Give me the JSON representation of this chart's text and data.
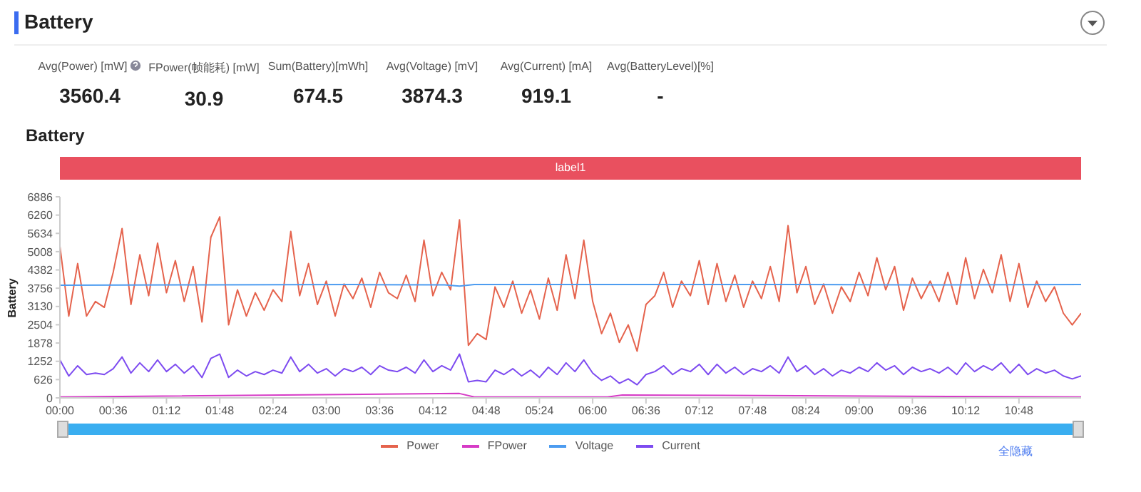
{
  "chart_data": {
    "type": "line",
    "title": "Battery",
    "subtitle": "Battery",
    "ylabel": "Battery",
    "annotations": [
      "Avg(Power) [mW]",
      "3560.4",
      "FPower(帧能耗) [mW]",
      "30.9",
      "Sum(Battery)[mWh]",
      "674.5",
      "Avg(Voltage) [mV]",
      "3874.3",
      "Avg(Current) [mA]",
      "919.1",
      "Avg(BatteryLevel)[%]",
      "-",
      "全隐藏"
    ],
    "bands": [
      {
        "axis": "x",
        "from": 0,
        "to": 690,
        "label": "label1"
      }
    ],
    "xlim": [
      0,
      690
    ],
    "xticks": [
      {
        "value": 0,
        "label": "00:00"
      },
      {
        "value": 36,
        "label": "00:36"
      },
      {
        "value": 72,
        "label": "01:12"
      },
      {
        "value": 108,
        "label": "01:48"
      },
      {
        "value": 144,
        "label": "02:24"
      },
      {
        "value": 180,
        "label": "03:00"
      },
      {
        "value": 216,
        "label": "03:36"
      },
      {
        "value": 252,
        "label": "04:12"
      },
      {
        "value": 288,
        "label": "04:48"
      },
      {
        "value": 324,
        "label": "05:24"
      },
      {
        "value": 360,
        "label": "06:00"
      },
      {
        "value": 396,
        "label": "06:36"
      },
      {
        "value": 432,
        "label": "07:12"
      },
      {
        "value": 468,
        "label": "07:48"
      },
      {
        "value": 504,
        "label": "08:24"
      },
      {
        "value": 540,
        "label": "09:00"
      },
      {
        "value": 576,
        "label": "09:36"
      },
      {
        "value": 612,
        "label": "10:12"
      },
      {
        "value": 648,
        "label": "10:48"
      }
    ],
    "ylim": [
      0,
      6886
    ],
    "yticks": [
      0,
      626,
      1252,
      1878,
      2504,
      3130,
      3756,
      4382,
      5008,
      5634,
      6260,
      6886
    ],
    "grid": false,
    "legend": "bottom",
    "marker": "none",
    "line_style": "solid",
    "series": [
      {
        "name": "Power",
        "color": "#e5634d",
        "x": [
          0,
          6,
          12,
          18,
          24,
          30,
          36,
          42,
          48,
          54,
          60,
          66,
          72,
          78,
          84,
          90,
          96,
          102,
          108,
          114,
          120,
          126,
          132,
          138,
          144,
          150,
          156,
          162,
          168,
          174,
          180,
          186,
          192,
          198,
          204,
          210,
          216,
          222,
          228,
          234,
          240,
          246,
          252,
          258,
          264,
          270,
          276,
          282,
          288,
          294,
          300,
          306,
          312,
          318,
          324,
          330,
          336,
          342,
          348,
          354,
          360,
          366,
          372,
          378,
          384,
          390,
          396,
          402,
          408,
          414,
          420,
          426,
          432,
          438,
          444,
          450,
          456,
          462,
          468,
          474,
          480,
          486,
          492,
          498,
          504,
          510,
          516,
          522,
          528,
          534,
          540,
          546,
          552,
          558,
          564,
          570,
          576,
          582,
          588,
          594,
          600,
          606,
          612,
          618,
          624,
          630,
          636,
          642,
          648,
          654,
          660,
          666,
          672,
          678,
          684,
          690
        ],
        "values": [
          5200,
          2800,
          4600,
          2800,
          3300,
          3100,
          4300,
          5800,
          3200,
          4900,
          3500,
          5300,
          3600,
          4700,
          3300,
          4500,
          2600,
          5500,
          6200,
          2500,
          3700,
          2800,
          3600,
          3000,
          3700,
          3300,
          5700,
          3500,
          4600,
          3200,
          4000,
          2800,
          3900,
          3400,
          4100,
          3100,
          4300,
          3600,
          3400,
          4200,
          3300,
          5400,
          3500,
          4300,
          3700,
          6100,
          1800,
          2200,
          2000,
          3800,
          3100,
          4000,
          2900,
          3700,
          2700,
          4100,
          3000,
          4900,
          3400,
          5400,
          3300,
          2200,
          2900,
          1900,
          2500,
          1600,
          3200,
          3500,
          4300,
          3100,
          4000,
          3500,
          4700,
          3200,
          4600,
          3300,
          4200,
          3100,
          4000,
          3400,
          4500,
          3300,
          5900,
          3600,
          4500,
          3200,
          3900,
          2900,
          3800,
          3300,
          4300,
          3500,
          4800,
          3700,
          4500,
          3000,
          4100,
          3400,
          4000,
          3300,
          4300,
          3200,
          4800,
          3400,
          4400,
          3600,
          4900,
          3300,
          4600,
          3100,
          4000,
          3300,
          3800,
          2900,
          2500,
          2900
        ]
      },
      {
        "name": "FPower",
        "color": "#d63bc6",
        "x": [
          0,
          270,
          280,
          370,
          380,
          690
        ],
        "values": [
          30,
          150,
          30,
          30,
          100,
          30
        ]
      },
      {
        "name": "Voltage",
        "color": "#4d9cf0",
        "x": [
          0,
          100,
          200,
          260,
          270,
          280,
          400,
          500,
          600,
          690
        ],
        "values": [
          3860,
          3870,
          3880,
          3870,
          3830,
          3880,
          3880,
          3880,
          3870,
          3880
        ]
      },
      {
        "name": "Current",
        "color": "#7d4bf0",
        "x": [
          0,
          6,
          12,
          18,
          24,
          30,
          36,
          42,
          48,
          54,
          60,
          66,
          72,
          78,
          84,
          90,
          96,
          102,
          108,
          114,
          120,
          126,
          132,
          138,
          144,
          150,
          156,
          162,
          168,
          174,
          180,
          186,
          192,
          198,
          204,
          210,
          216,
          222,
          228,
          234,
          240,
          246,
          252,
          258,
          264,
          270,
          276,
          282,
          288,
          294,
          300,
          306,
          312,
          318,
          324,
          330,
          336,
          342,
          348,
          354,
          360,
          366,
          372,
          378,
          384,
          390,
          396,
          402,
          408,
          414,
          420,
          426,
          432,
          438,
          444,
          450,
          456,
          462,
          468,
          474,
          480,
          486,
          492,
          498,
          504,
          510,
          516,
          522,
          528,
          534,
          540,
          546,
          552,
          558,
          564,
          570,
          576,
          582,
          588,
          594,
          600,
          606,
          612,
          618,
          624,
          630,
          636,
          642,
          648,
          654,
          660,
          666,
          672,
          678,
          684,
          690
        ],
        "values": [
          1300,
          750,
          1100,
          800,
          850,
          800,
          1000,
          1400,
          850,
          1200,
          900,
          1300,
          900,
          1150,
          850,
          1100,
          700,
          1350,
          1500,
          700,
          950,
          750,
          900,
          800,
          950,
          850,
          1400,
          900,
          1150,
          850,
          1000,
          750,
          1000,
          900,
          1050,
          800,
          1100,
          950,
          900,
          1050,
          850,
          1300,
          900,
          1100,
          950,
          1500,
          550,
          600,
          550,
          950,
          800,
          1000,
          750,
          950,
          700,
          1050,
          800,
          1200,
          900,
          1300,
          850,
          600,
          750,
          500,
          650,
          450,
          800,
          900,
          1100,
          800,
          1000,
          900,
          1150,
          800,
          1150,
          850,
          1050,
          800,
          1000,
          900,
          1100,
          850,
          1400,
          900,
          1100,
          800,
          1000,
          750,
          950,
          850,
          1050,
          900,
          1200,
          950,
          1100,
          800,
          1050,
          900,
          1000,
          850,
          1050,
          800,
          1200,
          900,
          1100,
          950,
          1200,
          850,
          1150,
          800,
          1000,
          850,
          950,
          750,
          650,
          750
        ]
      }
    ]
  }
}
